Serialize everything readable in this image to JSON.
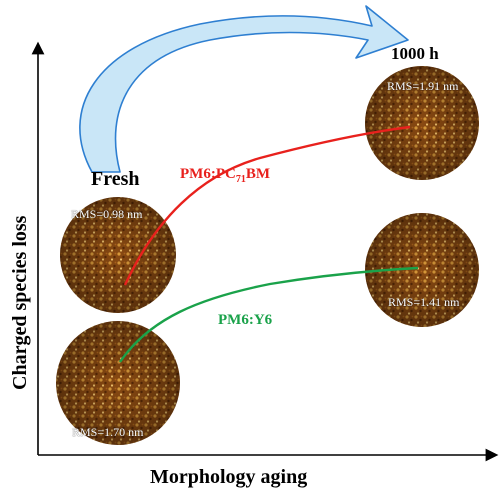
{
  "axes": {
    "x_label": "Morphology aging",
    "y_label": "Charged species loss"
  },
  "time_labels": {
    "fresh": "Fresh",
    "aged": "1000 h"
  },
  "blends": [
    {
      "name_prefix": "PM6:PC",
      "name_sub": "71",
      "name_suffix": "BM",
      "color": "#e8211d",
      "fresh_rms": "RMS=0.98 nm",
      "aged_rms": "RMS=1.91 nm"
    },
    {
      "name": "PM6:Y6",
      "color": "#1aa24a",
      "fresh_rms": "RMS=1.70 nm",
      "aged_rms": "RMS=1.41 nm"
    }
  ],
  "colors": {
    "arrow_fill": "#c9e6f7",
    "arrow_stroke": "#2e7fd1",
    "afm_base": "#7a3f0c"
  }
}
